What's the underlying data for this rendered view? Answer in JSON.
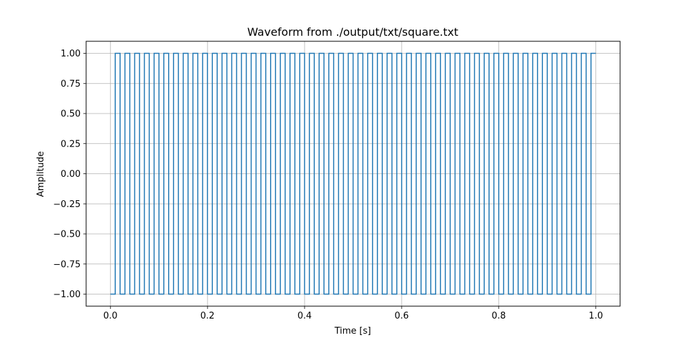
{
  "chart_data": {
    "type": "line",
    "title": "Waveform from ./output/txt/square.txt",
    "xlabel": "Time [s]",
    "ylabel": "Amplitude",
    "xlim": [
      -0.05,
      1.05
    ],
    "ylim": [
      -1.1,
      1.1
    ],
    "xticks": [
      0.0,
      0.2,
      0.4,
      0.6,
      0.8,
      1.0
    ],
    "xtick_labels": [
      "0.0",
      "0.2",
      "0.4",
      "0.6",
      "0.8",
      "1.0"
    ],
    "yticks": [
      -1.0,
      -0.75,
      -0.5,
      -0.25,
      0.0,
      0.25,
      0.5,
      0.75,
      1.0
    ],
    "ytick_labels": [
      "−1.00",
      "−0.75",
      "−0.50",
      "−0.25",
      "0.00",
      "0.25",
      "0.50",
      "0.75",
      "1.00"
    ],
    "grid": true,
    "legend": false,
    "series": [
      {
        "signal": "square",
        "frequency_hz": 50,
        "amplitude": 1.0,
        "start_value": -1.0,
        "x_start": 0.0,
        "x_end": 1.0,
        "color": "#1f77b4"
      }
    ]
  }
}
